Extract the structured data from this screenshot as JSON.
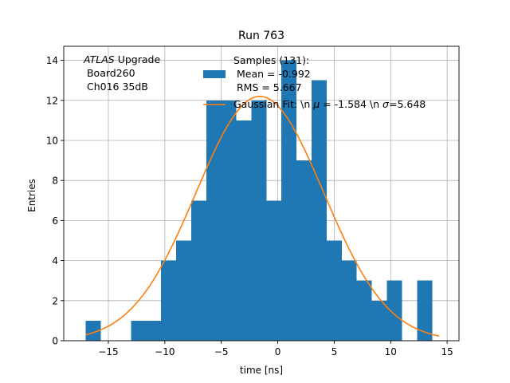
{
  "chart_data": {
    "type": "bar",
    "title": "Run 763",
    "xlabel": "time [ns]",
    "ylabel": "Entries",
    "xlim": [
      -18.95,
      16.05
    ],
    "ylim": [
      0,
      14.7
    ],
    "grid": true,
    "xticks": [
      -15,
      -10,
      -5,
      0,
      5,
      10,
      15
    ],
    "xtick_labels": [
      "−15",
      "−10",
      "−5",
      "0",
      "5",
      "10",
      "15"
    ],
    "yticks": [
      0,
      2,
      4,
      6,
      8,
      10,
      12,
      14
    ],
    "ytick_labels": [
      "0",
      "2",
      "4",
      "6",
      "8",
      "10",
      "12",
      "14"
    ],
    "bins": {
      "edges": [
        -17.0,
        -15.67,
        -14.33,
        -13.0,
        -11.67,
        -10.33,
        -9.0,
        -7.67,
        -6.33,
        -5.0,
        -3.67,
        -2.33,
        -1.0,
        0.33,
        1.67,
        3.0,
        4.33,
        5.67,
        7.0,
        8.33,
        9.67,
        11.0,
        12.33,
        13.67
      ],
      "counts": [
        1,
        0,
        0,
        1,
        1,
        4,
        5,
        7,
        12,
        12,
        11,
        12,
        7,
        14,
        9,
        13,
        5,
        4,
        3,
        2,
        3,
        0,
        3
      ]
    },
    "bar_color": "#1f77b4",
    "fit": {
      "name": "Gaussian Fit",
      "type": "gaussian",
      "mu": -1.584,
      "sigma": 5.648,
      "amplitude": 12.2,
      "x_range": [
        -17.0,
        14.3
      ],
      "color": "#ff7f0e"
    },
    "annotation": {
      "line1_italic": "ATLAS",
      "line1_rest": " Upgrade",
      "line2": " Board260",
      "line3": " Ch016 35dB"
    },
    "legend": {
      "position": "top-center",
      "samples_line1": "Samples (131):",
      "samples_line2": " Mean = -0.992",
      "samples_line3": " RMS = 5.667",
      "fit_part1": "Gaussian Fit: \\n ",
      "fit_mu_symbol": "μ",
      "fit_part2": " = -1.584 \\n ",
      "fit_sigma_symbol": "σ",
      "fit_part3": "=5.648"
    }
  }
}
